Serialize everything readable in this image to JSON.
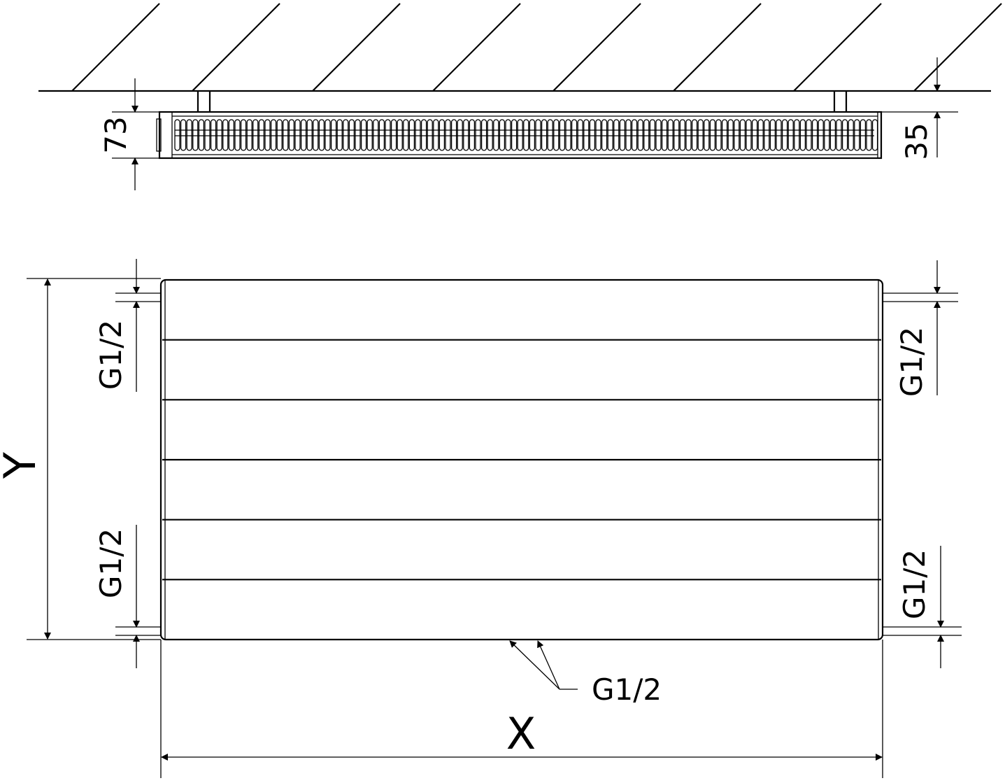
{
  "top_view": {
    "depth_label": "73",
    "wall_gap_label": "35"
  },
  "front_view": {
    "height_label": "Y",
    "width_label": "X",
    "connection_top_left_label": "G1/2",
    "connection_bottom_left_label": "G1/2",
    "connection_top_right_label": "G1/2",
    "connection_bottom_right_label": "G1/2",
    "connection_bottom_label": "G1/2",
    "panel_grooves": 5
  }
}
